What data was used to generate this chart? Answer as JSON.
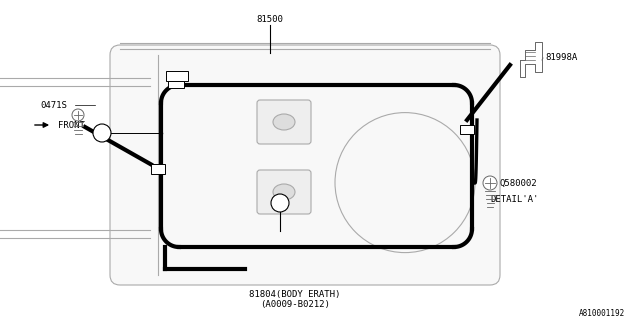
{
  "bg_color": "#ffffff",
  "line_color": "#000000",
  "gray_color": "#aaaaaa",
  "dark_gray": "#666666",
  "thick_lw": 3.0,
  "thin_lw": 0.8,
  "med_lw": 1.5,
  "label_81500": "81500",
  "label_81998A": "81998A",
  "label_0471S": "0471S",
  "label_FRONT": "FRONT",
  "label_Q580002": "Q580002",
  "label_DETAIL_A": "DETAIL'A'",
  "label_81804": "81804(BODY ERATH)",
  "label_A0009": "(A0009-B0212)",
  "label_part_no": "A810001192"
}
